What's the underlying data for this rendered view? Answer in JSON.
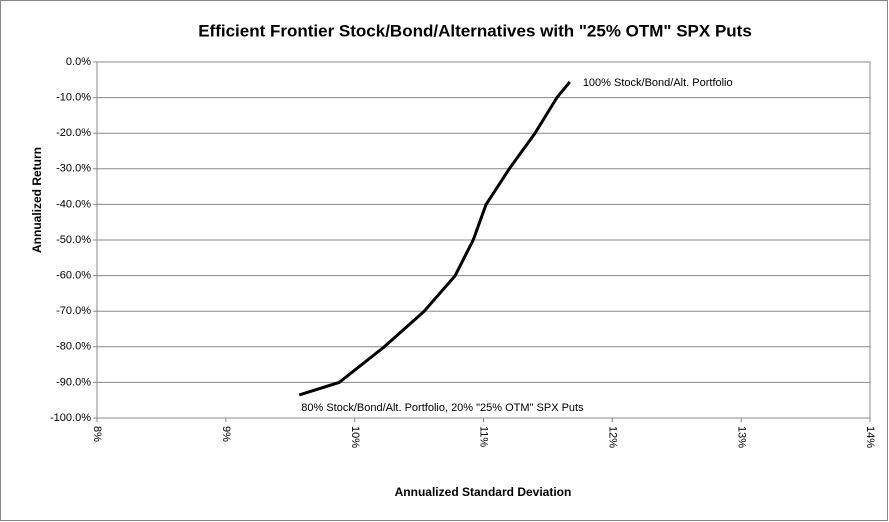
{
  "chart_data": {
    "type": "line",
    "title": "Efficient Frontier Stock/Bond/Alternatives with \"25% OTM\" SPX Puts",
    "xlabel": "Annualized Standard Deviation",
    "ylabel": "Annualized Return",
    "x": [
      9.57,
      9.88,
      10.23,
      10.54,
      10.78,
      10.92,
      11.02,
      11.2,
      11.4,
      11.57,
      11.67
    ],
    "values": [
      -93.5,
      -90,
      -80,
      -70,
      -60,
      -50,
      -40,
      -30,
      -20,
      -10,
      -5.6
    ],
    "color": "#000000",
    "annotations": [
      "80% Stock/Bond/Alt. Portfolio, 20% \"25% OTM\" SPX Puts",
      "100% Stock/Bond/Alt. Portfolio"
    ],
    "xlim": [
      8,
      14
    ],
    "xticks": [
      {
        "value": 8,
        "label": "8%"
      },
      {
        "value": 9,
        "label": "9%"
      },
      {
        "value": 10,
        "label": "10%"
      },
      {
        "value": 11,
        "label": "11%"
      },
      {
        "value": 12,
        "label": "12%"
      },
      {
        "value": 13,
        "label": "13%"
      },
      {
        "value": 14,
        "label": "14%"
      }
    ],
    "ylim": [
      -100,
      0
    ],
    "yticks": [
      {
        "value": 0,
        "label": "0.0%"
      },
      {
        "value": -10,
        "label": "-10.0%"
      },
      {
        "value": -20,
        "label": "-20.0%"
      },
      {
        "value": -30,
        "label": "-30.0%"
      },
      {
        "value": -40,
        "label": "-40.0%"
      },
      {
        "value": -50,
        "label": "-50.0%"
      },
      {
        "value": -60,
        "label": "-60.0%"
      },
      {
        "value": -70,
        "label": "-70.0%"
      },
      {
        "value": -80,
        "label": "-80.0%"
      },
      {
        "value": -90,
        "label": "-90.0%"
      },
      {
        "value": -100,
        "label": "-100.0%"
      }
    ],
    "grid": true
  }
}
